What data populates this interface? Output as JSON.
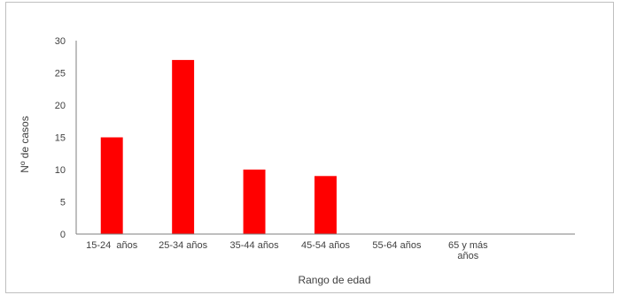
{
  "chart_data": {
    "type": "bar",
    "categories": [
      "15-24  años",
      "25-34 años",
      "35-44 años",
      "45-54 años",
      "55-64 años",
      "65 y más años"
    ],
    "category_lines": [
      [
        "15-24  años"
      ],
      [
        "25-34 años"
      ],
      [
        "35-44 años"
      ],
      [
        "45-54 años"
      ],
      [
        "55-64 años"
      ],
      [
        "65 y más",
        "años"
      ]
    ],
    "values": [
      15,
      27,
      10,
      9,
      0,
      0
    ],
    "title": "",
    "xlabel": "Rango de edad",
    "ylabel": "Nº de casos",
    "ylim": [
      0,
      30
    ],
    "yticks": [
      0,
      5,
      10,
      15,
      20,
      25,
      30
    ],
    "grid": false,
    "legend": "none",
    "bar_color": "#ff0000",
    "axis_color": "#7f7f7f",
    "text_color": "#404040"
  }
}
